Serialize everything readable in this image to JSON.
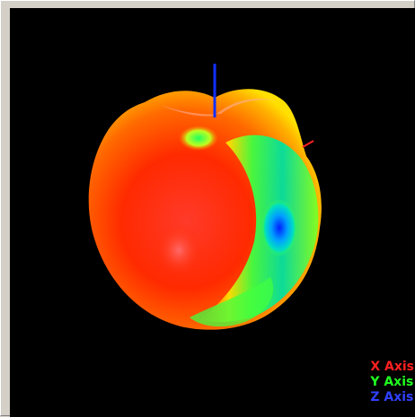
{
  "viewer": {
    "legend": {
      "x_axis": {
        "label": "X Axis",
        "color": "#ff2020"
      },
      "y_axis": {
        "label": "Y Axis",
        "color": "#20ff20"
      },
      "z_axis": {
        "label": "Z Axis",
        "color": "#3040ff"
      }
    },
    "background_color": "#000000",
    "pattern_colormap": [
      "#ff2a00",
      "#ff8a00",
      "#ffe000",
      "#40ff40",
      "#00e0ff",
      "#0020ff"
    ]
  }
}
